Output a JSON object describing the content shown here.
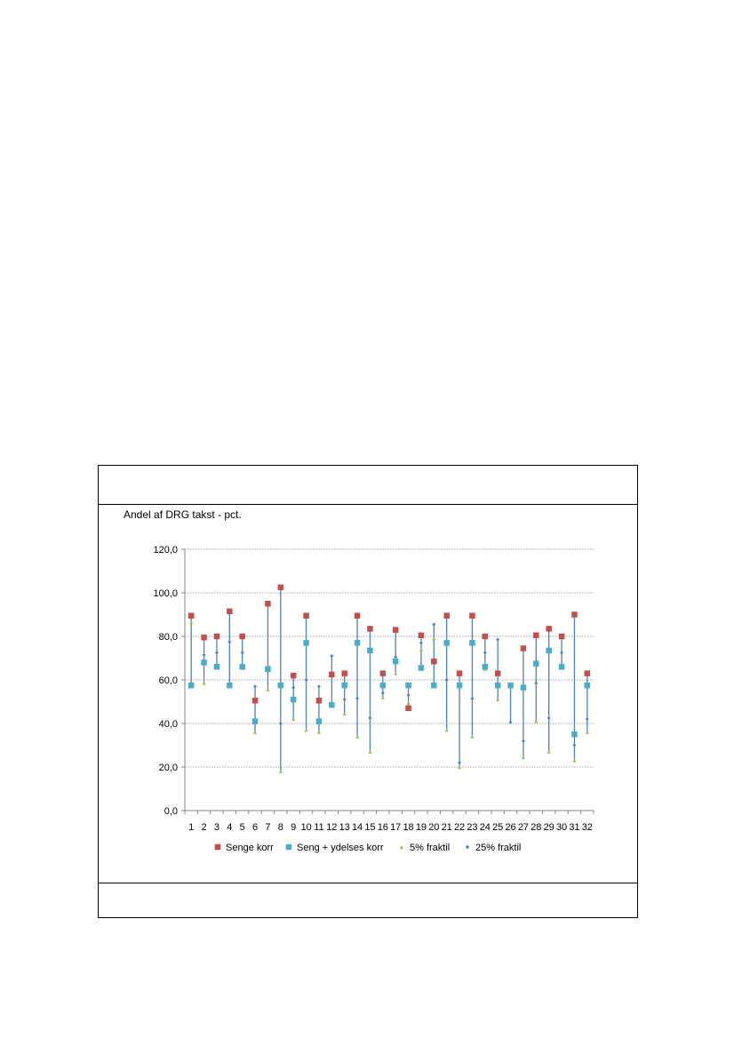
{
  "chart_data": {
    "type": "scatter",
    "title": "Andel af DRG takst - pct.",
    "categories": [
      "1",
      "2",
      "3",
      "4",
      "5",
      "6",
      "7",
      "8",
      "9",
      "10",
      "11",
      "12",
      "13",
      "14",
      "15",
      "16",
      "17",
      "18",
      "19",
      "20",
      "21",
      "22",
      "23",
      "24",
      "25",
      "26",
      "27",
      "28",
      "29",
      "30",
      "31",
      "32"
    ],
    "ylim": [
      0,
      120
    ],
    "yticks": [
      "0,0",
      "20,0",
      "40,0",
      "60,0",
      "80,0",
      "100,0",
      "120,0"
    ],
    "grid": true,
    "legend_position": "bottom",
    "range_lines": true,
    "series": [
      {
        "name": "Senge korr",
        "marker": "square",
        "color": "#c0504d",
        "values": [
          89.5,
          79.5,
          80,
          91.5,
          80,
          50.5,
          95,
          102.5,
          62,
          89.5,
          50.5,
          62.5,
          63,
          89.5,
          83.5,
          63,
          83,
          47,
          80.5,
          68.5,
          89.5,
          63,
          89.5,
          80,
          63,
          null,
          74.5,
          80.5,
          83.5,
          80,
          90,
          63
        ]
      },
      {
        "name": "Seng + ydelses korr",
        "marker": "square",
        "color": "#4bacc6",
        "values": [
          57.5,
          68,
          66,
          57.5,
          66,
          41,
          65,
          57.5,
          51,
          77,
          41,
          48.5,
          57.5,
          77,
          73.5,
          57.5,
          68.5,
          57.5,
          65.5,
          57.5,
          77,
          57.5,
          77,
          66,
          57.5,
          57.5,
          56.5,
          67.5,
          73.5,
          66,
          35,
          57.5
        ]
      },
      {
        "name": "5% fraktil",
        "marker": "triangle",
        "color": "#9bbb59",
        "values": [
          86.5,
          58.5,
          65.5,
          57.5,
          65.5,
          36,
          55.5,
          18,
          42,
          37,
          36,
          48,
          44.5,
          34,
          27,
          52,
          63,
          49.5,
          74,
          79,
          37,
          20,
          34,
          65,
          51,
          57.5,
          24.5,
          41,
          27,
          65.5,
          23,
          36
        ]
      },
      {
        "name": "25% fraktil",
        "marker": "diamond",
        "color": "#4f81bd",
        "values": [
          88.5,
          71.5,
          72.5,
          77.5,
          72.5,
          57,
          64,
          40,
          56.5,
          60,
          57,
          71,
          51,
          51.5,
          42.5,
          54,
          70.5,
          53,
          77,
          85.5,
          60,
          22,
          51.5,
          72.5,
          78.5,
          40.5,
          32,
          58.5,
          42.5,
          72.5,
          30,
          42
        ]
      }
    ]
  },
  "colors": {
    "grid": "#868686",
    "axis": "#868686",
    "range_line": "#4f81bd",
    "text": "#000000"
  }
}
